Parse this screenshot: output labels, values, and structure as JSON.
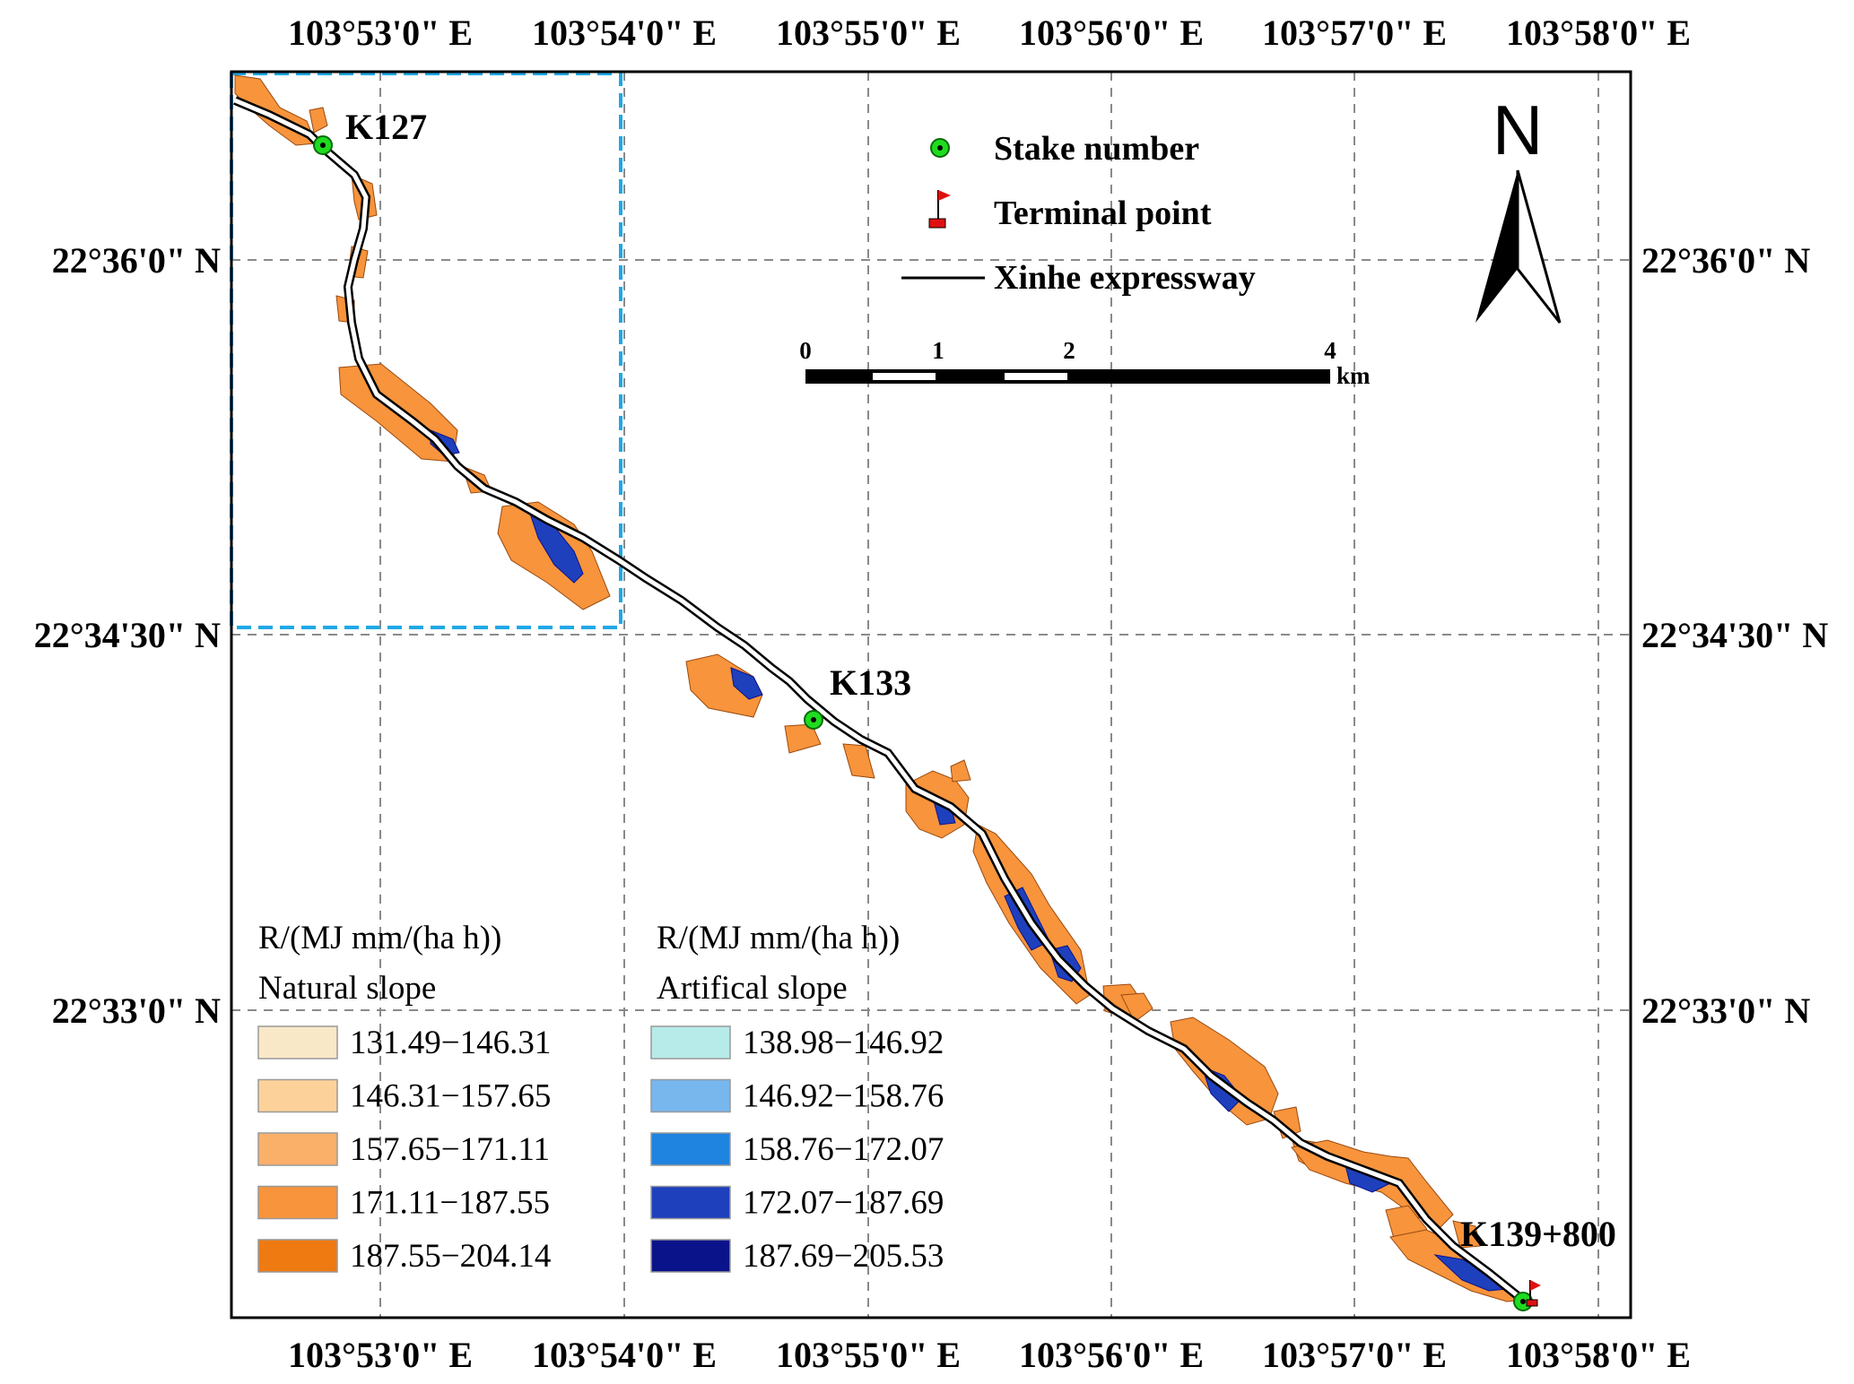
{
  "top_axis": [
    "103°53'0\" E",
    "103°54'0\" E",
    "103°55'0\" E",
    "103°56'0\" E",
    "103°57'0\" E",
    "103°58'0\" E"
  ],
  "bottom_axis": [
    "103°53'0\" E",
    "103°54'0\" E",
    "103°55'0\" E",
    "103°56'0\" E",
    "103°57'0\" E",
    "103°58'0\" E"
  ],
  "left_axis": [
    "22°36'0\" N",
    "22°34'30\" N",
    "22°33'0\" N"
  ],
  "right_axis": [
    "22°36'0\" N",
    "22°34'30\" N",
    "22°33'0\" N"
  ],
  "stakes": [
    "K127",
    "K133",
    "K139+800"
  ],
  "legend": {
    "stake_number": "Stake number",
    "terminal_point": "Terminal point",
    "expressway": "Xinhe expressway"
  },
  "north_label": "N",
  "scale_bar": {
    "ticks": [
      "0",
      "1",
      "2",
      "4"
    ],
    "unit": "km"
  },
  "natural_legend": {
    "unit": "R/(MJ mm/(ha h))",
    "title": "Natural slope",
    "classes": [
      {
        "label": "131.49−146.31",
        "color": "#f9e8c8"
      },
      {
        "label": "146.31−157.65",
        "color": "#fdd29a"
      },
      {
        "label": "157.65−171.11",
        "color": "#fbb06a"
      },
      {
        "label": "171.11−187.55",
        "color": "#f7943c"
      },
      {
        "label": "187.55−204.14",
        "color": "#ef7a12"
      }
    ]
  },
  "artificial_legend": {
    "unit": "R/(MJ mm/(ha h))",
    "title": "Artifical slope",
    "classes": [
      {
        "label": "138.98−146.92",
        "color": "#b6ebe9"
      },
      {
        "label": "146.92−158.76",
        "color": "#78b6ee"
      },
      {
        "label": "158.76−172.07",
        "color": "#1f83e0"
      },
      {
        "label": "172.07−187.69",
        "color": "#1e40bd"
      },
      {
        "label": "187.69−205.53",
        "color": "#0b138a"
      }
    ]
  },
  "colors": {
    "grid": "#8a8a8a",
    "inset_box": "#1fa8e6",
    "stake_marker": "#1fdc1f",
    "terminal_flag": "#e01010"
  }
}
